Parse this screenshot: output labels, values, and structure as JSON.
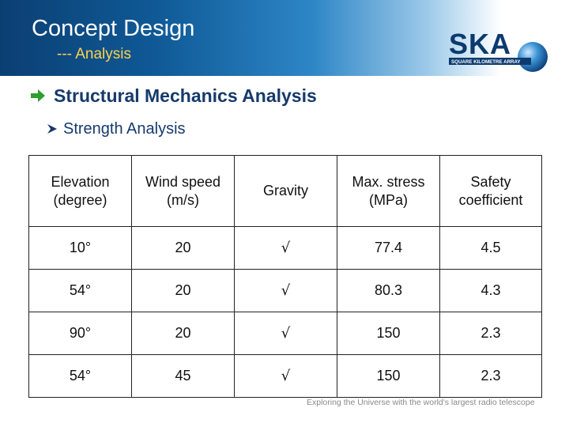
{
  "header": {
    "title": "Concept Design",
    "subtitle": "--- Analysis",
    "gradient_colors": [
      "#0b3f73",
      "#2e86c6",
      "#ffffff"
    ],
    "subtitle_color": "#ffd24a"
  },
  "logo": {
    "text": "SKA",
    "tagline": "SQUARE KILOMETRE ARRAY",
    "icon": "ska-logo-icon"
  },
  "section": {
    "icon": "arrow-right-icon",
    "arrow_color": "#2e9e2e",
    "title": "Structural Mechanics Analysis"
  },
  "subsection": {
    "icon": "arrowhead-bullet-icon",
    "title": "Strength Analysis"
  },
  "table": {
    "headers": [
      "Elevation\n(degree)",
      "Wind speed\n(m/s)",
      "Gravity",
      "Max. stress\n(MPa)",
      "Safety\ncoefficient"
    ],
    "rows": [
      [
        "10°",
        "20",
        "√",
        "77.4",
        "4.5"
      ],
      [
        "54°",
        "20",
        "√",
        "80.3",
        "4.3"
      ],
      [
        "90°",
        "20",
        "√",
        "150",
        "2.3"
      ],
      [
        "54°",
        "45",
        "√",
        "150",
        "2.3"
      ]
    ]
  },
  "footer": {
    "text": "Exploring the Universe with the world's largest radio telescope"
  }
}
